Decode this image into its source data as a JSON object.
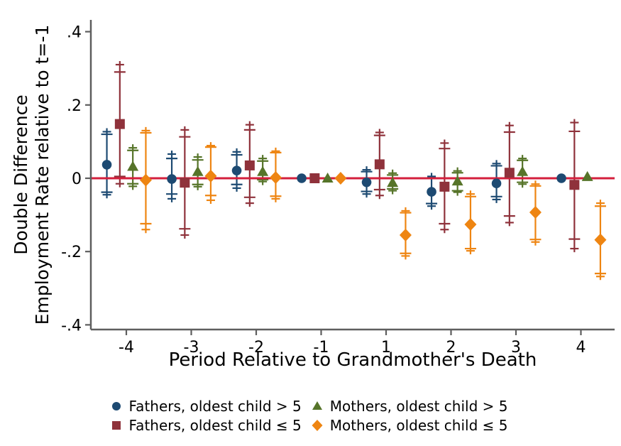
{
  "figure": {
    "y_axis": {
      "title_line1": "Double Difference",
      "title_line2": "Employment Rate relative to t=-1",
      "ticks": [
        ".4",
        ".2",
        "0",
        "-.2",
        "-.4"
      ],
      "tick_values": [
        0.4,
        0.2,
        0,
        -0.2,
        -0.4
      ]
    },
    "x_axis": {
      "title": "Period Relative to Grandmother's Death",
      "ticks": [
        "-4",
        "-3",
        "-2",
        "-1",
        "1",
        "2",
        "3",
        "4"
      ]
    },
    "colors": {
      "navy": "#1d4a72",
      "maroon": "#8f323b",
      "green": "#567429",
      "orange": "#ee8512",
      "zero_line": "#d41f3c",
      "axis": "#5e5e5e",
      "text": "#000000"
    },
    "legend": [
      {
        "label": "Fathers, oldest child > 5",
        "marker": "circle",
        "color": "#1d4a72"
      },
      {
        "label": "Fathers, oldest child ≤ 5",
        "marker": "square",
        "color": "#8f323b"
      },
      {
        "label": "Mothers, oldest child > 5",
        "marker": "triangle",
        "color": "#567429"
      },
      {
        "label": "Mothers, oldest child ≤ 5",
        "marker": "diamond",
        "color": "#ee8512"
      }
    ]
  },
  "chart_data": {
    "type": "scatter",
    "subtype": "coefficient-plot-with-error-bars",
    "title": "",
    "xlabel": "Period Relative to Grandmother's Death",
    "ylabel": "Double Difference Employment Rate relative to t=-1",
    "x_categories": [
      -4,
      -3,
      -2,
      -1,
      1,
      2,
      3,
      4
    ],
    "ylim": [
      -0.43,
      0.43
    ],
    "y_ticks": [
      -0.4,
      -0.2,
      0,
      0.2,
      0.4
    ],
    "grid": false,
    "legend_position": "bottom",
    "reference_line": {
      "y": 0,
      "color": "#d41f3c"
    },
    "series": [
      {
        "name": "Fathers, oldest child > 5",
        "slug": "fathers-gt-5",
        "marker": "circle",
        "color": "#1d4a72",
        "offset": -0.3,
        "points": [
          {
            "x": -4,
            "y": 0.037,
            "ci_outer": [
              -0.045,
              0.127
            ],
            "ci_inner": [
              -0.038,
              0.12
            ]
          },
          {
            "x": -3,
            "y": -0.002,
            "ci_outer": [
              -0.056,
              0.066
            ],
            "ci_inner": [
              -0.043,
              0.054
            ]
          },
          {
            "x": -2,
            "y": 0.021,
            "ci_outer": [
              -0.027,
              0.072
            ],
            "ci_inner": [
              -0.017,
              0.064
            ]
          },
          {
            "x": -1,
            "y": 0.0,
            "ci_outer": null,
            "ci_inner": null
          },
          {
            "x": 1,
            "y": -0.011,
            "ci_outer": [
              -0.043,
              0.023
            ],
            "ci_inner": [
              -0.036,
              0.018
            ]
          },
          {
            "x": 2,
            "y": -0.037,
            "ci_outer": [
              -0.076,
              0.005
            ],
            "ci_inner": [
              -0.069,
              0.0
            ]
          },
          {
            "x": 3,
            "y": -0.014,
            "ci_outer": [
              -0.058,
              0.04
            ],
            "ci_inner": [
              -0.05,
              0.034
            ]
          },
          {
            "x": 4,
            "y": 0.0,
            "ci_outer": null,
            "ci_inner": null
          }
        ]
      },
      {
        "name": "Fathers, oldest child ≤ 5",
        "slug": "fathers-le-5",
        "marker": "square",
        "color": "#8f323b",
        "offset": -0.1,
        "points": [
          {
            "x": -4,
            "y": 0.148,
            "ci_outer": [
              -0.015,
              0.31
            ],
            "ci_inner": [
              0.005,
              0.29
            ]
          },
          {
            "x": -3,
            "y": -0.012,
            "ci_outer": [
              -0.155,
              0.132
            ],
            "ci_inner": [
              -0.138,
              0.113
            ]
          },
          {
            "x": -2,
            "y": 0.035,
            "ci_outer": [
              -0.068,
              0.146
            ],
            "ci_inner": [
              -0.052,
              0.132
            ]
          },
          {
            "x": -1,
            "y": 0.0,
            "ci_outer": null,
            "ci_inner": null
          },
          {
            "x": 1,
            "y": 0.038,
            "ci_outer": [
              -0.047,
              0.125
            ],
            "ci_inner": [
              -0.031,
              0.117
            ]
          },
          {
            "x": 2,
            "y": -0.023,
            "ci_outer": [
              -0.14,
              0.096
            ],
            "ci_inner": [
              -0.124,
              0.081
            ]
          },
          {
            "x": 3,
            "y": 0.015,
            "ci_outer": [
              -0.121,
              0.144
            ],
            "ci_inner": [
              -0.103,
              0.126
            ]
          },
          {
            "x": 4,
            "y": -0.018,
            "ci_outer": [
              -0.192,
              0.152
            ],
            "ci_inner": [
              -0.166,
              0.128
            ]
          }
        ]
      },
      {
        "name": "Mothers, oldest child > 5",
        "slug": "mothers-gt-5",
        "marker": "triangle",
        "color": "#567429",
        "offset": 0.1,
        "points": [
          {
            "x": -4,
            "y": 0.032,
            "ci_outer": [
              -0.022,
              0.083
            ],
            "ci_inner": [
              -0.015,
              0.076
            ]
          },
          {
            "x": -3,
            "y": 0.018,
            "ci_outer": [
              -0.023,
              0.058
            ],
            "ci_inner": [
              -0.017,
              0.05
            ]
          },
          {
            "x": -2,
            "y": 0.018,
            "ci_outer": [
              -0.009,
              0.054
            ],
            "ci_inner": [
              -0.004,
              0.047
            ]
          },
          {
            "x": -1,
            "y": 0.0,
            "ci_outer": null,
            "ci_inner": null
          },
          {
            "x": 1,
            "y": -0.012,
            "ci_outer": [
              -0.034,
              0.014
            ],
            "ci_inner": [
              -0.029,
              0.009
            ]
          },
          {
            "x": 2,
            "y": -0.008,
            "ci_outer": [
              -0.038,
              0.02
            ],
            "ci_inner": [
              -0.034,
              0.015
            ]
          },
          {
            "x": 3,
            "y": 0.018,
            "ci_outer": [
              -0.016,
              0.054
            ],
            "ci_inner": [
              -0.011,
              0.049
            ]
          },
          {
            "x": 4,
            "y": 0.004,
            "ci_outer": null,
            "ci_inner": null
          }
        ]
      },
      {
        "name": "Mothers, oldest child ≤ 5",
        "slug": "mothers-le-5",
        "marker": "diamond",
        "color": "#ee8512",
        "offset": 0.3,
        "points": [
          {
            "x": -4,
            "y": -0.005,
            "ci_outer": [
              -0.14,
              0.13
            ],
            "ci_inner": [
              -0.124,
              0.124
            ]
          },
          {
            "x": -3,
            "y": 0.006,
            "ci_outer": [
              -0.06,
              0.089
            ],
            "ci_inner": [
              -0.047,
              0.085
            ]
          },
          {
            "x": -2,
            "y": 0.002,
            "ci_outer": [
              -0.056,
              0.074
            ],
            "ci_inner": [
              -0.049,
              0.07
            ]
          },
          {
            "x": -1,
            "y": 0.0,
            "ci_outer": null,
            "ci_inner": null
          },
          {
            "x": 1,
            "y": -0.155,
            "ci_outer": [
              -0.212,
              -0.089
            ],
            "ci_inner": [
              -0.205,
              -0.094
            ]
          },
          {
            "x": 2,
            "y": -0.126,
            "ci_outer": [
              -0.198,
              -0.043
            ],
            "ci_inner": [
              -0.192,
              -0.05
            ]
          },
          {
            "x": 3,
            "y": -0.093,
            "ci_outer": [
              -0.174,
              -0.016
            ],
            "ci_inner": [
              -0.167,
              -0.021
            ]
          },
          {
            "x": 4,
            "y": -0.168,
            "ci_outer": [
              -0.268,
              -0.068
            ],
            "ci_inner": [
              -0.26,
              -0.076
            ]
          }
        ]
      }
    ]
  }
}
